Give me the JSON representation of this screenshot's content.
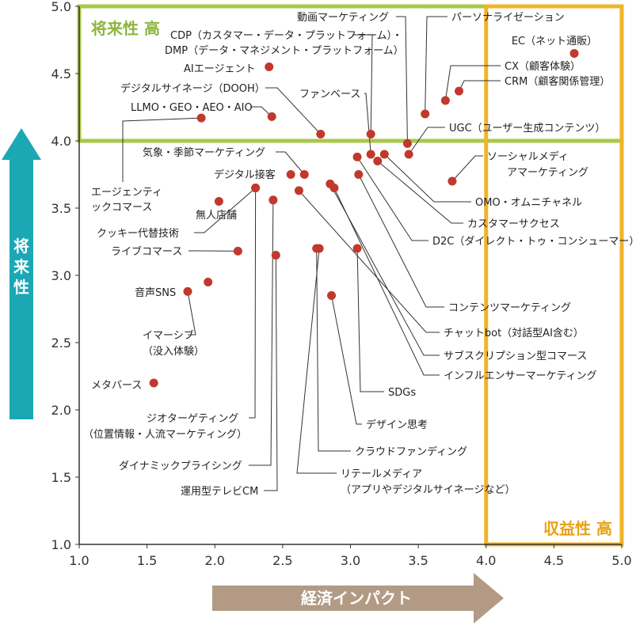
{
  "chart_data": {
    "type": "scatter",
    "xlabel": "経済インパクト",
    "ylabel": "将来性",
    "xlim": [
      1.0,
      5.0
    ],
    "ylim": [
      1.0,
      5.0
    ],
    "x_ticks": [
      "1.0",
      "1.5",
      "2.0",
      "2.5",
      "3.0",
      "3.5",
      "4.0",
      "4.5",
      "5.0"
    ],
    "y_ticks": [
      "1.0",
      "1.5",
      "2.0",
      "2.5",
      "3.0",
      "3.5",
      "4.0",
      "4.5",
      "5.0"
    ],
    "grid": false,
    "regions": [
      {
        "label": "将来性 高",
        "y_min": 4.0,
        "color": "#a8c94a"
      },
      {
        "label": "収益性 高",
        "x_min": 4.0,
        "color": "#f0b429"
      }
    ],
    "point_color": "#c0392b",
    "points": [
      {
        "label": "EC（ネット通販）",
        "x": 4.65,
        "y": 4.65
      },
      {
        "label": "パーソナライゼーション",
        "x": 3.55,
        "y": 4.2
      },
      {
        "label": "CX（顧客体験）",
        "x": 3.7,
        "y": 4.3
      },
      {
        "label": "CRM（顧客関係管理）",
        "x": 3.8,
        "y": 4.37
      },
      {
        "label": "動画マーケティング",
        "x": 3.42,
        "y": 3.98
      },
      {
        "label": "UGC（ユーザー生成コンテンツ）",
        "x": 3.43,
        "y": 3.9
      },
      {
        "label": "CDP（カスタマー・データ・プラットフォーム）・DMP（データ・マネジメント・プラットフォーム）",
        "x": 3.15,
        "y": 4.05
      },
      {
        "label": "AIエージェント",
        "x": 2.4,
        "y": 4.55
      },
      {
        "label": "デジタルサイネージ（DOOH）",
        "x": 2.78,
        "y": 4.05
      },
      {
        "label": "ファンベース",
        "x": 3.15,
        "y": 3.9
      },
      {
        "label": "LLMO・GEO・AEO・AIO",
        "x": 2.42,
        "y": 4.18
      },
      {
        "label": "エージェンティックコマース",
        "x": 1.9,
        "y": 4.17
      },
      {
        "label": "気象・季節マーケティング",
        "x": 2.66,
        "y": 3.75
      },
      {
        "label": "デジタル接客",
        "x": 2.56,
        "y": 3.75
      },
      {
        "label": "ソーシャルメディアマーケティング",
        "x": 3.75,
        "y": 3.7
      },
      {
        "label": "OMO・オムニチャネル",
        "x": 3.25,
        "y": 3.9
      },
      {
        "label": "カスタマーサクセス",
        "x": 3.2,
        "y": 3.85
      },
      {
        "label": "D2C（ダイレクト・トゥ・コンシューマー）",
        "x": 3.05,
        "y": 3.88
      },
      {
        "label": "無人店舗",
        "x": 2.03,
        "y": 3.55
      },
      {
        "label": "クッキー代替技術",
        "x": 2.3,
        "y": 3.65
      },
      {
        "label": "ライブコマース",
        "x": 2.17,
        "y": 3.18
      },
      {
        "label": "コンテンツマーケティング",
        "x": 3.06,
        "y": 3.75
      },
      {
        "label": "チャットbot（対話型AI含む）",
        "x": 2.62,
        "y": 3.63
      },
      {
        "label": "サブスクリプション型コマース",
        "x": 2.85,
        "y": 3.68
      },
      {
        "label": "インフルエンサーマーケティング",
        "x": 2.88,
        "y": 3.65
      },
      {
        "label": "音声SNS",
        "x": 1.95,
        "y": 2.95
      },
      {
        "label": "イマーシブ（没入体験）",
        "x": 1.8,
        "y": 2.88
      },
      {
        "label": "SDGs",
        "x": 3.05,
        "y": 3.2
      },
      {
        "label": "デザイン思考",
        "x": 2.86,
        "y": 2.85
      },
      {
        "label": "メタバース",
        "x": 1.55,
        "y": 2.2
      },
      {
        "label": "ジオターゲティング（位置情報・人流マーケティング）",
        "x": 2.3,
        "y": 3.65
      },
      {
        "label": "クラウドファンディング",
        "x": 2.75,
        "y": 3.2
      },
      {
        "label": "ダイナミックプライシング",
        "x": 2.43,
        "y": 3.56
      },
      {
        "label": "リテールメディア（アプリやデジタルサイネージなど）",
        "x": 2.77,
        "y": 3.2
      },
      {
        "label": "運用型テレビCM",
        "x": 2.45,
        "y": 3.15
      }
    ]
  }
}
